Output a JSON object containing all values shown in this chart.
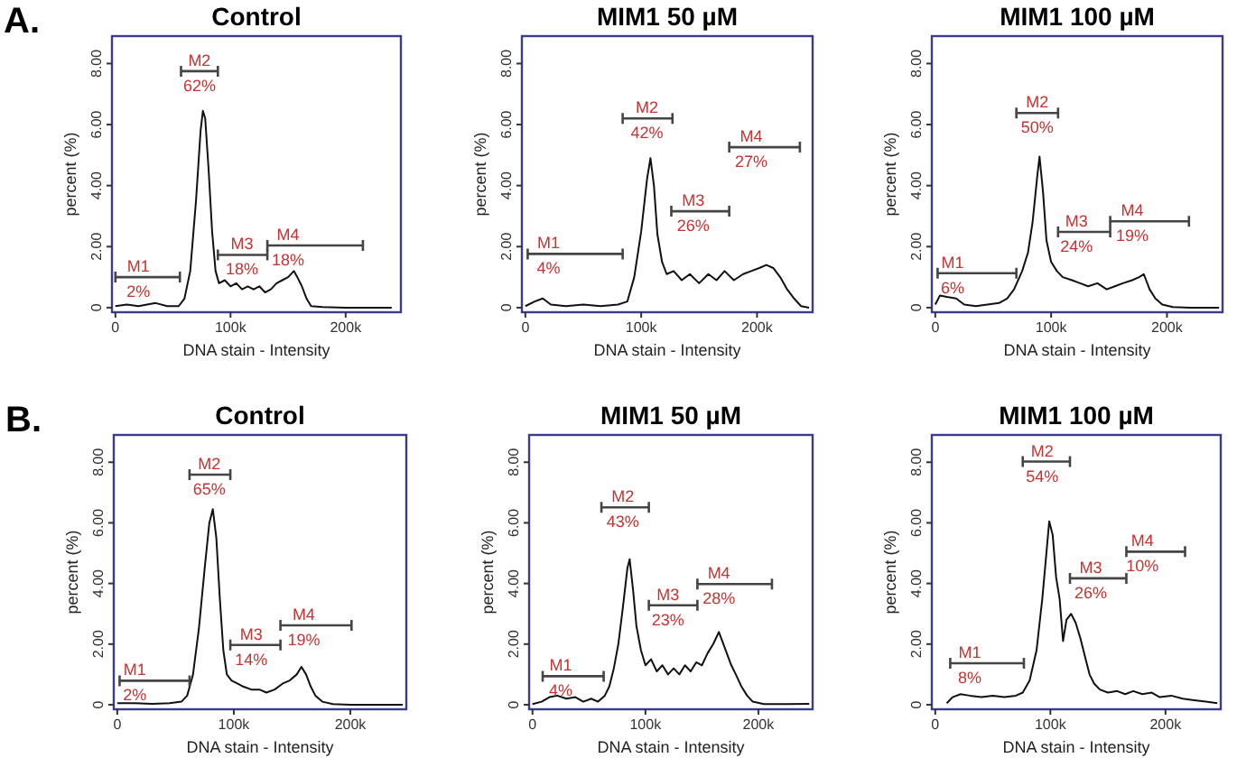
{
  "chart_data": [
    {
      "type": "line",
      "title": "Control",
      "xlabel": "DNA stain - Intensity",
      "ylabel": "percent (%)",
      "xlim": [
        -3,
        248
      ],
      "ylim": [
        -0.15,
        8.9
      ],
      "xticks": [
        {
          "value": 0,
          "label": "0"
        },
        {
          "value": 100,
          "label": "100k"
        },
        {
          "value": 200,
          "label": "200k"
        }
      ],
      "yticks": [
        {
          "value": 0,
          "label": "0"
        },
        {
          "value": 2,
          "label": "2.00"
        },
        {
          "value": 4,
          "label": "4.00"
        },
        {
          "value": 6,
          "label": "6.00"
        },
        {
          "value": 8,
          "label": "8.00"
        }
      ],
      "series": [
        {
          "color": "#111111",
          "x": [
            0,
            10,
            20,
            35,
            45,
            55,
            60,
            65,
            70,
            74,
            76,
            78,
            81,
            84,
            87,
            90,
            95,
            100,
            105,
            110,
            115,
            120,
            125,
            130,
            135,
            140,
            145,
            150,
            155,
            158,
            162,
            166,
            170,
            180,
            200,
            220,
            240
          ],
          "values": [
            0.05,
            0.1,
            0.05,
            0.15,
            0.05,
            0.05,
            0.3,
            1.2,
            3.5,
            5.8,
            6.45,
            6.2,
            4.5,
            2.5,
            1.2,
            0.8,
            0.9,
            0.7,
            0.8,
            0.6,
            0.7,
            0.6,
            0.7,
            0.5,
            0.6,
            0.8,
            0.9,
            1.0,
            1.2,
            1.0,
            0.7,
            0.3,
            0.05,
            0.02,
            0,
            0,
            0
          ]
        },
        {
          "color": "#444444",
          "x": [
            0,
            56
          ],
          "values": [
            1.0,
            1.0
          ]
        },
        {
          "color": "#444444",
          "x": [
            57,
            89
          ],
          "values": [
            7.75,
            7.75
          ]
        },
        {
          "color": "#444444",
          "x": [
            89,
            132
          ],
          "values": [
            1.73,
            1.73
          ]
        },
        {
          "color": "#444444",
          "x": [
            132,
            215
          ],
          "values": [
            2.04,
            2.04
          ]
        }
      ],
      "annotations": [
        "A.",
        {
          "text": "M1",
          "x": 20,
          "y": 1.0
        },
        {
          "text": "2%",
          "x": 20,
          "y": 1.0
        },
        {
          "text": "M2",
          "x": 73,
          "y": 7.75
        },
        {
          "text": "62%",
          "x": 73,
          "y": 7.75
        },
        {
          "text": "M3",
          "x": 110,
          "y": 1.73
        },
        {
          "text": "18%",
          "x": 110,
          "y": 1.73
        },
        {
          "text": "M4",
          "x": 150,
          "y": 2.04
        },
        {
          "text": "18%",
          "x": 150,
          "y": 2.04
        }
      ]
    },
    {
      "type": "line",
      "title": "MIM1 50 µM",
      "xlabel": "DNA stain - Intensity",
      "ylabel": "percent (%)",
      "xlim": [
        -3,
        248
      ],
      "ylim": [
        -0.15,
        8.9
      ],
      "xticks": [
        {
          "value": 0,
          "label": "0"
        },
        {
          "value": 100,
          "label": "100k"
        },
        {
          "value": 200,
          "label": "200k"
        }
      ],
      "yticks": [
        {
          "value": 0,
          "label": "0"
        },
        {
          "value": 2,
          "label": "2.00"
        },
        {
          "value": 4,
          "label": "4.00"
        },
        {
          "value": 6,
          "label": "6.00"
        },
        {
          "value": 8,
          "label": "8.00"
        }
      ],
      "series": [
        {
          "color": "#111111",
          "x": [
            0,
            8,
            15,
            22,
            35,
            50,
            65,
            80,
            88,
            94,
            100,
            105,
            108,
            111,
            114,
            118,
            122,
            128,
            135,
            142,
            150,
            158,
            165,
            172,
            180,
            188,
            195,
            202,
            208,
            214,
            220,
            226,
            232,
            238,
            245
          ],
          "values": [
            0.05,
            0.2,
            0.3,
            0.1,
            0.05,
            0.1,
            0.05,
            0.1,
            0.2,
            1.0,
            2.5,
            4.2,
            4.9,
            4.0,
            2.4,
            1.5,
            1.1,
            1.2,
            0.9,
            1.1,
            0.8,
            1.1,
            0.9,
            1.2,
            0.9,
            1.1,
            1.2,
            1.3,
            1.4,
            1.3,
            1.0,
            0.6,
            0.3,
            0.05,
            0
          ]
        },
        {
          "color": "#444444",
          "x": [
            2,
            84
          ],
          "values": [
            1.76,
            1.76
          ]
        },
        {
          "color": "#444444",
          "x": [
            84,
            127
          ],
          "values": [
            6.2,
            6.2
          ]
        },
        {
          "color": "#444444",
          "x": [
            126,
            176
          ],
          "values": [
            3.16,
            3.16
          ]
        },
        {
          "color": "#444444",
          "x": [
            176,
            237
          ],
          "values": [
            5.26,
            5.26
          ]
        }
      ],
      "annotations": [
        {
          "text": "M1",
          "x": 20,
          "y": 1.76
        },
        {
          "text": "4%",
          "x": 20,
          "y": 1.76
        },
        {
          "text": "M2",
          "x": 105,
          "y": 6.2
        },
        {
          "text": "42%",
          "x": 105,
          "y": 6.2
        },
        {
          "text": "M3",
          "x": 145,
          "y": 3.16
        },
        {
          "text": "26%",
          "x": 145,
          "y": 3.16
        },
        {
          "text": "M4",
          "x": 195,
          "y": 5.26
        },
        {
          "text": "27%",
          "x": 195,
          "y": 5.26
        }
      ]
    },
    {
      "type": "line",
      "title": "MIM1 100 µM",
      "xlabel": "DNA stain - Intensity",
      "ylabel": "percent (%)",
      "xlim": [
        -3,
        248
      ],
      "ylim": [
        -0.15,
        8.9
      ],
      "xticks": [
        {
          "value": 0,
          "label": "0"
        },
        {
          "value": 100,
          "label": "100k"
        },
        {
          "value": 200,
          "label": "200k"
        }
      ],
      "yticks": [
        {
          "value": 0,
          "label": "0"
        },
        {
          "value": 2,
          "label": "2.00"
        },
        {
          "value": 4,
          "label": "4.00"
        },
        {
          "value": 6,
          "label": "6.00"
        },
        {
          "value": 8,
          "label": "8.00"
        }
      ],
      "series": [
        {
          "color": "#111111",
          "x": [
            0,
            4,
            10,
            18,
            25,
            35,
            45,
            55,
            62,
            68,
            75,
            80,
            84,
            88,
            90,
            93,
            96,
            100,
            105,
            110,
            118,
            125,
            132,
            140,
            148,
            155,
            162,
            170,
            176,
            180,
            185,
            190,
            196,
            205,
            220,
            245
          ],
          "values": [
            0.1,
            0.4,
            0.35,
            0.3,
            0.1,
            0.05,
            0.1,
            0.15,
            0.3,
            0.6,
            1.2,
            1.8,
            2.8,
            4.3,
            4.95,
            3.8,
            2.2,
            1.5,
            1.2,
            1.0,
            0.9,
            0.8,
            0.7,
            0.8,
            0.6,
            0.7,
            0.8,
            0.9,
            1.0,
            1.1,
            0.6,
            0.3,
            0.1,
            0.02,
            0,
            0
          ]
        },
        {
          "color": "#444444",
          "x": [
            2,
            70
          ],
          "values": [
            1.13,
            1.13
          ]
        },
        {
          "color": "#444444",
          "x": [
            70,
            106
          ],
          "values": [
            6.38,
            6.38
          ]
        },
        {
          "color": "#444444",
          "x": [
            106,
            151
          ],
          "values": [
            2.48,
            2.48
          ]
        },
        {
          "color": "#444444",
          "x": [
            151,
            219
          ],
          "values": [
            2.83,
            2.83
          ]
        }
      ],
      "annotations": [
        {
          "text": "M1",
          "x": 15,
          "y": 1.13
        },
        {
          "text": "6%",
          "x": 15,
          "y": 1.13
        },
        {
          "text": "M2",
          "x": 88,
          "y": 6.38
        },
        {
          "text": "50%",
          "x": 88,
          "y": 6.38
        },
        {
          "text": "M3",
          "x": 122,
          "y": 2.48
        },
        {
          "text": "24%",
          "x": 122,
          "y": 2.48
        },
        {
          "text": "M4",
          "x": 170,
          "y": 2.83
        },
        {
          "text": "19%",
          "x": 170,
          "y": 2.83
        }
      ]
    },
    {
      "type": "line",
      "title": "Control",
      "xlabel": "DNA stain - Intensity",
      "ylabel": "percent (%)",
      "xlim": [
        -3,
        248
      ],
      "ylim": [
        -0.15,
        8.9
      ],
      "xticks": [
        {
          "value": 0,
          "label": "0"
        },
        {
          "value": 100,
          "label": "100k"
        },
        {
          "value": 200,
          "label": "200k"
        }
      ],
      "yticks": [
        {
          "value": 0,
          "label": "0"
        },
        {
          "value": 2,
          "label": "2.00"
        },
        {
          "value": 4,
          "label": "4.00"
        },
        {
          "value": 6,
          "label": "6.00"
        },
        {
          "value": 8,
          "label": "8.00"
        }
      ],
      "series": [
        {
          "color": "#111111",
          "x": [
            0,
            15,
            30,
            45,
            55,
            60,
            65,
            70,
            75,
            79,
            82,
            85,
            88,
            91,
            94,
            98,
            103,
            108,
            115,
            122,
            128,
            135,
            142,
            148,
            154,
            158,
            162,
            166,
            170,
            176,
            185,
            200,
            245
          ],
          "values": [
            0.05,
            0.05,
            0.03,
            0.05,
            0.1,
            0.3,
            1.0,
            2.5,
            4.5,
            6.0,
            6.45,
            5.5,
            3.5,
            1.8,
            1.0,
            0.8,
            0.7,
            0.6,
            0.5,
            0.5,
            0.4,
            0.5,
            0.7,
            0.8,
            1.0,
            1.25,
            1.0,
            0.6,
            0.3,
            0.1,
            0.02,
            0,
            0
          ]
        },
        {
          "color": "#444444",
          "x": [
            2,
            62
          ],
          "values": [
            0.79,
            0.79
          ]
        },
        {
          "color": "#444444",
          "x": [
            62,
            97
          ],
          "values": [
            7.59,
            7.59
          ]
        },
        {
          "color": "#444444",
          "x": [
            97,
            140
          ],
          "values": [
            1.97,
            1.97
          ]
        },
        {
          "color": "#444444",
          "x": [
            140,
            201
          ],
          "values": [
            2.62,
            2.62
          ]
        }
      ],
      "annotations": [
        "B.",
        {
          "text": "M1",
          "x": 15,
          "y": 0.79
        },
        {
          "text": "2%",
          "x": 15,
          "y": 0.79
        },
        {
          "text": "M2",
          "x": 79,
          "y": 7.59
        },
        {
          "text": "65%",
          "x": 79,
          "y": 7.59
        },
        {
          "text": "M3",
          "x": 115,
          "y": 1.97
        },
        {
          "text": "14%",
          "x": 115,
          "y": 1.97
        },
        {
          "text": "M4",
          "x": 160,
          "y": 2.62
        },
        {
          "text": "19%",
          "x": 160,
          "y": 2.62
        }
      ]
    },
    {
      "type": "line",
      "title": "MIM1 50 µM",
      "xlabel": "DNA stain - Intensity",
      "ylabel": "percent (%)",
      "xlim": [
        -3,
        248
      ],
      "ylim": [
        -0.15,
        8.9
      ],
      "xticks": [
        {
          "value": 0,
          "label": "0"
        },
        {
          "value": 100,
          "label": "100k"
        },
        {
          "value": 200,
          "label": "200k"
        }
      ],
      "yticks": [
        {
          "value": 0,
          "label": "0"
        },
        {
          "value": 2,
          "label": "2.00"
        },
        {
          "value": 4,
          "label": "4.00"
        },
        {
          "value": 6,
          "label": "6.00"
        },
        {
          "value": 8,
          "label": "8.00"
        }
      ],
      "series": [
        {
          "color": "#111111",
          "x": [
            0,
            8,
            15,
            22,
            30,
            38,
            45,
            52,
            58,
            64,
            68,
            72,
            76,
            80,
            84,
            86,
            89,
            92,
            96,
            100,
            105,
            110,
            115,
            120,
            125,
            130,
            135,
            140,
            145,
            150,
            155,
            160,
            165,
            168,
            172,
            176,
            180,
            185,
            190,
            195,
            205,
            225,
            245
          ],
          "values": [
            0.02,
            0.1,
            0.25,
            0.3,
            0.2,
            0.25,
            0.1,
            0.2,
            0.1,
            0.3,
            0.6,
            1.2,
            2.0,
            3.2,
            4.5,
            4.8,
            3.8,
            2.6,
            1.8,
            1.3,
            1.5,
            1.1,
            1.3,
            1.0,
            1.2,
            1.0,
            1.3,
            1.1,
            1.4,
            1.3,
            1.7,
            2.0,
            2.4,
            2.1,
            1.7,
            1.3,
            1.0,
            0.6,
            0.3,
            0.1,
            0.02,
            0.02,
            0.03
          ]
        },
        {
          "color": "#444444",
          "x": [
            9,
            63
          ],
          "values": [
            0.94,
            0.94
          ]
        },
        {
          "color": "#444444",
          "x": [
            61,
            103
          ],
          "values": [
            6.51,
            6.51
          ]
        },
        {
          "color": "#444444",
          "x": [
            103,
            146
          ],
          "values": [
            3.28,
            3.28
          ]
        },
        {
          "color": "#444444",
          "x": [
            146,
            212
          ],
          "values": [
            3.98,
            3.98
          ]
        }
      ],
      "annotations": [
        {
          "text": "M1",
          "x": 25,
          "y": 0.94
        },
        {
          "text": "4%",
          "x": 25,
          "y": 0.94
        },
        {
          "text": "M2",
          "x": 80,
          "y": 6.51
        },
        {
          "text": "43%",
          "x": 80,
          "y": 6.51
        },
        {
          "text": "M3",
          "x": 120,
          "y": 3.28
        },
        {
          "text": "23%",
          "x": 120,
          "y": 3.28
        },
        {
          "text": "M4",
          "x": 165,
          "y": 3.98
        },
        {
          "text": "28%",
          "x": 165,
          "y": 3.98
        }
      ]
    },
    {
      "type": "line",
      "title": "MIM1 100 µM",
      "xlabel": "DNA stain - Intensity",
      "ylabel": "percent (%)",
      "xlim": [
        -3,
        248
      ],
      "ylim": [
        -0.15,
        8.9
      ],
      "xticks": [
        {
          "value": 0,
          "label": "0"
        },
        {
          "value": 100,
          "label": "100k"
        },
        {
          "value": 200,
          "label": "200k"
        }
      ],
      "yticks": [
        {
          "value": 0,
          "label": "0"
        },
        {
          "value": 2,
          "label": "2.00"
        },
        {
          "value": 4,
          "label": "4.00"
        },
        {
          "value": 6,
          "label": "6.00"
        },
        {
          "value": 8,
          "label": "8.00"
        }
      ],
      "series": [
        {
          "color": "#111111",
          "x": [
            10,
            15,
            22,
            30,
            40,
            50,
            60,
            70,
            76,
            82,
            88,
            93,
            97,
            99,
            102,
            105,
            108,
            111,
            114,
            118,
            122,
            126,
            130,
            134,
            138,
            143,
            150,
            158,
            165,
            172,
            180,
            188,
            195,
            205,
            215,
            225,
            235,
            245
          ],
          "values": [
            0.05,
            0.25,
            0.35,
            0.3,
            0.25,
            0.3,
            0.25,
            0.3,
            0.4,
            0.8,
            1.8,
            3.5,
            5.2,
            6.05,
            5.6,
            4.2,
            3.5,
            2.1,
            2.8,
            3.0,
            2.7,
            2.2,
            1.6,
            1.0,
            0.7,
            0.5,
            0.4,
            0.45,
            0.35,
            0.45,
            0.35,
            0.4,
            0.25,
            0.3,
            0.2,
            0.15,
            0.1,
            0.05
          ]
        },
        {
          "color": "#444444",
          "x": [
            13,
            77
          ],
          "values": [
            1.37,
            1.37
          ]
        },
        {
          "color": "#444444",
          "x": [
            76,
            117
          ],
          "values": [
            8.02,
            8.02
          ]
        },
        {
          "color": "#444444",
          "x": [
            117,
            166
          ],
          "values": [
            4.17,
            4.17
          ]
        },
        {
          "color": "#444444",
          "x": [
            166,
            217
          ],
          "values": [
            5.05,
            5.05
          ]
        }
      ],
      "annotations": [
        {
          "text": "M1",
          "x": 30,
          "y": 1.37
        },
        {
          "text": "8%",
          "x": 30,
          "y": 1.37
        },
        {
          "text": "M2",
          "x": 93,
          "y": 8.02
        },
        {
          "text": "54%",
          "x": 93,
          "y": 8.02
        },
        {
          "text": "M3",
          "x": 135,
          "y": 4.17
        },
        {
          "text": "26%",
          "x": 135,
          "y": 4.17
        },
        {
          "text": "M4",
          "x": 180,
          "y": 5.05
        },
        {
          "text": "10%",
          "x": 180,
          "y": 5.05
        }
      ]
    }
  ]
}
